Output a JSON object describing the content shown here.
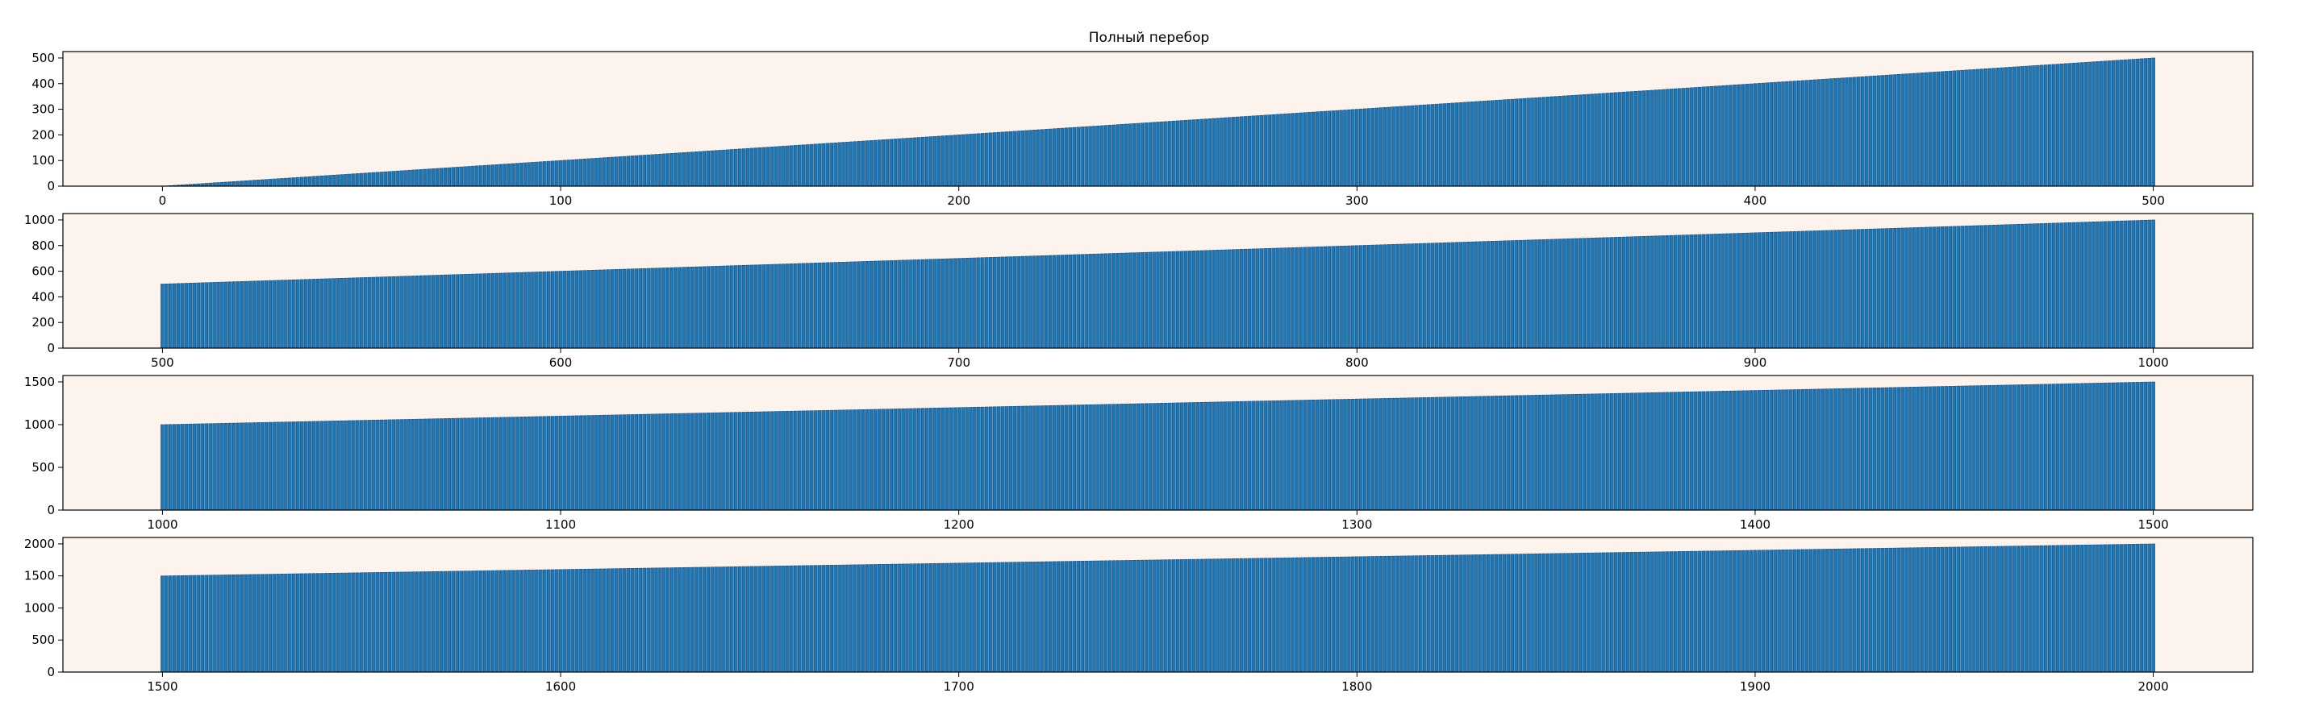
{
  "figure": {
    "title": "Полный перебор",
    "background": "#ffffff",
    "axes_facecolor": "#fdf3ed",
    "bar_color": "#1f77b4",
    "bar_edgecolor": "#0d4f85"
  },
  "chart_data": [
    {
      "type": "bar",
      "title": "Полный перебор",
      "x_range": [
        0,
        500
      ],
      "xlim": [
        -25,
        525
      ],
      "ylim": [
        0,
        525
      ],
      "xticks": [
        0,
        100,
        200,
        300,
        400,
        500
      ],
      "xtick_labels": [
        "0",
        "100",
        "200",
        "300",
        "400",
        "500"
      ],
      "yticks": [
        0,
        100,
        200,
        300,
        400,
        500
      ],
      "ytick_labels": [
        "0",
        "100",
        "200",
        "300",
        "400",
        "500"
      ],
      "value_rule": "y = x",
      "grid": false,
      "legend": "none"
    },
    {
      "type": "bar",
      "x_range": [
        500,
        1000
      ],
      "xlim": [
        475,
        1025
      ],
      "ylim": [
        0,
        1050
      ],
      "xticks": [
        500,
        600,
        700,
        800,
        900,
        1000
      ],
      "xtick_labels": [
        "500",
        "600",
        "700",
        "800",
        "900",
        "1000"
      ],
      "yticks": [
        0,
        200,
        400,
        600,
        800,
        1000
      ],
      "ytick_labels": [
        "0",
        "200",
        "400",
        "600",
        "800",
        "1000"
      ],
      "value_rule": "y = x",
      "grid": false,
      "legend": "none"
    },
    {
      "type": "bar",
      "x_range": [
        1000,
        1500
      ],
      "xlim": [
        975,
        1525
      ],
      "ylim": [
        0,
        1575
      ],
      "xticks": [
        1000,
        1100,
        1200,
        1300,
        1400,
        1500
      ],
      "xtick_labels": [
        "1000",
        "1100",
        "1200",
        "1300",
        "1400",
        "1500"
      ],
      "yticks": [
        0,
        500,
        1000,
        1500
      ],
      "ytick_labels": [
        "0",
        "500",
        "1000",
        "1500"
      ],
      "value_rule": "y = x",
      "grid": false,
      "legend": "none"
    },
    {
      "type": "bar",
      "x_range": [
        1500,
        2000
      ],
      "xlim": [
        1475,
        2025
      ],
      "ylim": [
        0,
        2100
      ],
      "xticks": [
        1500,
        1600,
        1700,
        1800,
        1900,
        2000
      ],
      "xtick_labels": [
        "1500",
        "1600",
        "1700",
        "1800",
        "1900",
        "2000"
      ],
      "yticks": [
        0,
        500,
        1000,
        1500,
        2000
      ],
      "ytick_labels": [
        "0",
        "500",
        "1000",
        "1500",
        "2000"
      ],
      "value_rule": "y = x",
      "grid": false,
      "legend": "none"
    }
  ]
}
